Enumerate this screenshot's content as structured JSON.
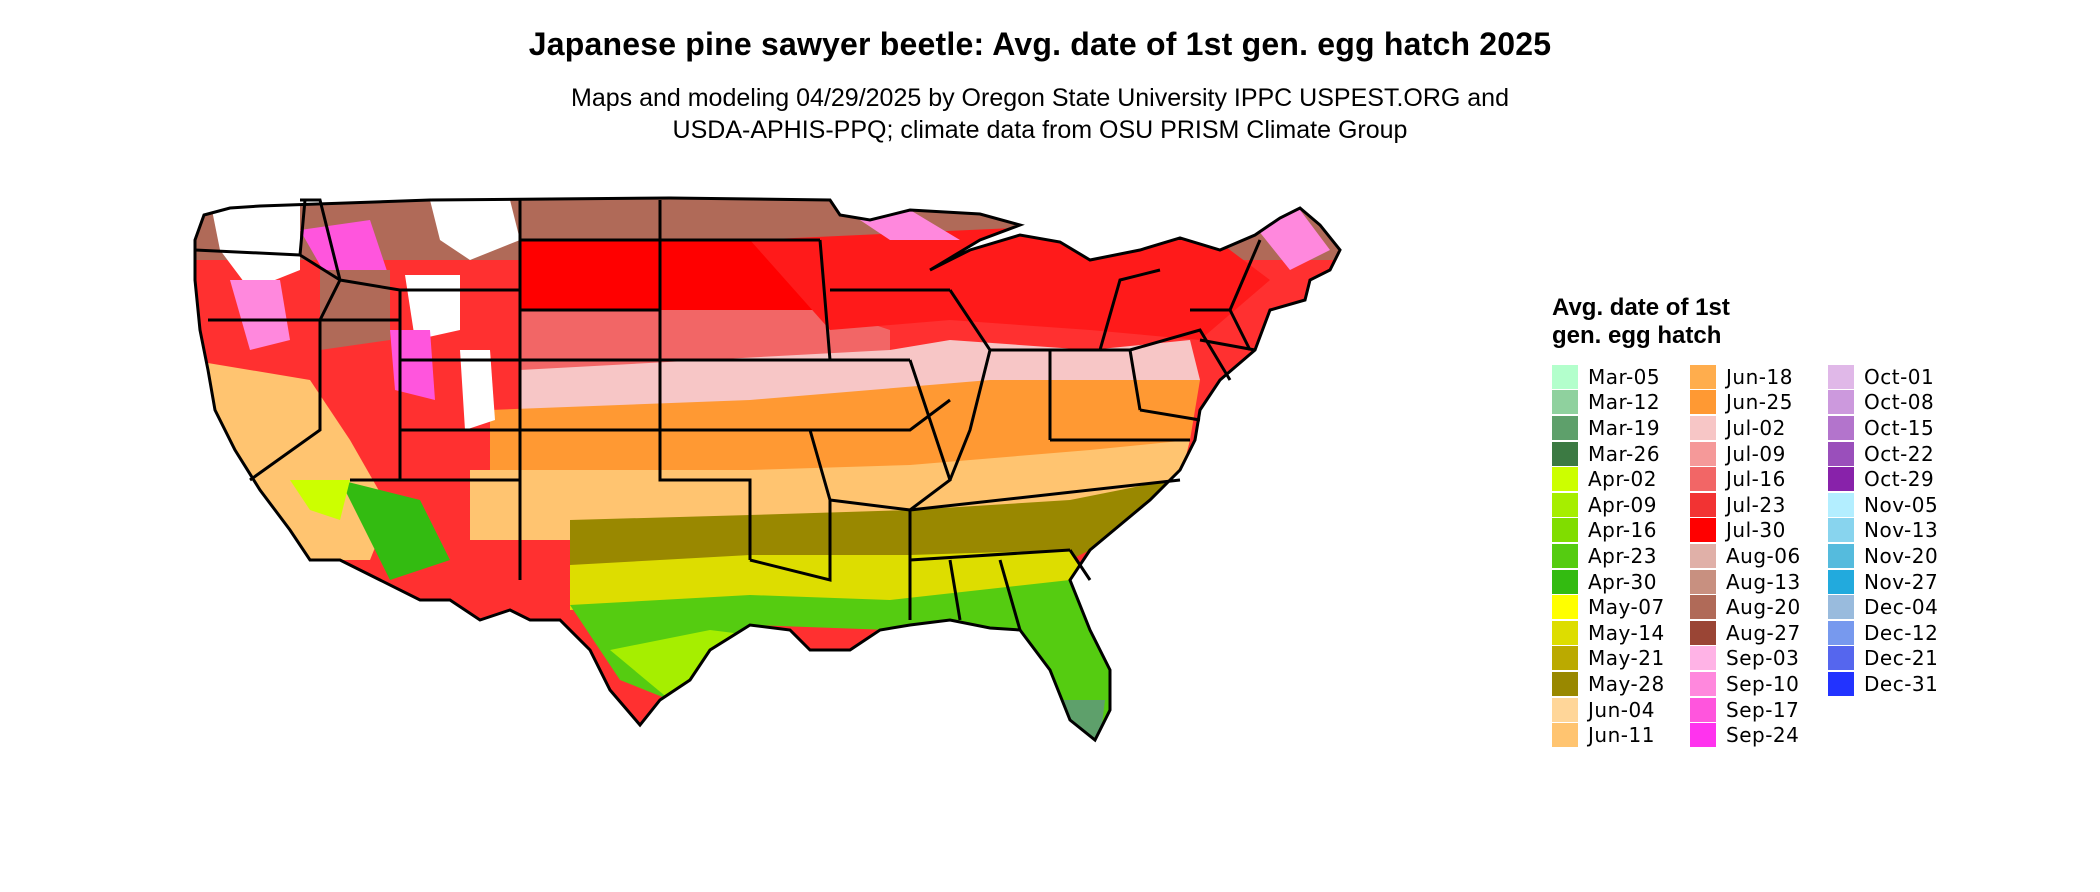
{
  "title": "Japanese pine sawyer beetle: Avg. date of 1st gen. egg hatch 2025",
  "subtitle_line1": "Maps and modeling 04/29/2025 by Oregon State University IPPC USPEST.ORG and",
  "subtitle_line2": "USDA-APHIS-PPQ; climate data from OSU PRISM Climate Group",
  "legend": {
    "title": "Avg. date of 1st gen. egg hatch",
    "columns": [
      [
        {
          "label": "Mar-05",
          "color": "#b3ffcc"
        },
        {
          "label": "Mar-12",
          "color": "#8fd19e"
        },
        {
          "label": "Mar-19",
          "color": "#5ea06b"
        },
        {
          "label": "Mar-26",
          "color": "#3c7a43"
        },
        {
          "label": "Apr-02",
          "color": "#ccff00"
        },
        {
          "label": "Apr-09",
          "color": "#a6ee00"
        },
        {
          "label": "Apr-16",
          "color": "#80dd00"
        },
        {
          "label": "Apr-23",
          "color": "#55cc11"
        },
        {
          "label": "Apr-30",
          "color": "#33bb11"
        },
        {
          "label": "May-07",
          "color": "#ffff00"
        },
        {
          "label": "May-14",
          "color": "#dddd00"
        },
        {
          "label": "May-21",
          "color": "#bbaa00"
        },
        {
          "label": "May-28",
          "color": "#998800"
        },
        {
          "label": "Jun-04",
          "color": "#ffd699"
        },
        {
          "label": "Jun-11",
          "color": "#ffc470"
        }
      ],
      [
        {
          "label": "Jun-18",
          "color": "#ffad4d"
        },
        {
          "label": "Jun-25",
          "color": "#ff9933"
        },
        {
          "label": "Jul-02",
          "color": "#f7c6c6"
        },
        {
          "label": "Jul-09",
          "color": "#f59999"
        },
        {
          "label": "Jul-16",
          "color": "#f26666"
        },
        {
          "label": "Jul-23",
          "color": "#f23333"
        },
        {
          "label": "Jul-30",
          "color": "#ff0000"
        },
        {
          "label": "Aug-06",
          "color": "#e0b0a8"
        },
        {
          "label": "Aug-13",
          "color": "#c89080"
        },
        {
          "label": "Aug-20",
          "color": "#b06a58"
        },
        {
          "label": "Aug-27",
          "color": "#9a4535"
        },
        {
          "label": "Sep-03",
          "color": "#ffb3e6"
        },
        {
          "label": "Sep-10",
          "color": "#ff88dd"
        },
        {
          "label": "Sep-17",
          "color": "#ff55dd"
        },
        {
          "label": "Sep-24",
          "color": "#ff33ee"
        }
      ],
      [
        {
          "label": "Oct-01",
          "color": "#e0b8e8"
        },
        {
          "label": "Oct-08",
          "color": "#cc99dd"
        },
        {
          "label": "Oct-15",
          "color": "#b374cc"
        },
        {
          "label": "Oct-22",
          "color": "#9a4fbb"
        },
        {
          "label": "Oct-29",
          "color": "#8822aa"
        },
        {
          "label": "Nov-05",
          "color": "#b3eeff"
        },
        {
          "label": "Nov-13",
          "color": "#88d4ee"
        },
        {
          "label": "Nov-20",
          "color": "#55bbdd"
        },
        {
          "label": "Nov-27",
          "color": "#22aadd"
        },
        {
          "label": "Dec-04",
          "color": "#99bbdd"
        },
        {
          "label": "Dec-12",
          "color": "#7799ee"
        },
        {
          "label": "Dec-21",
          "color": "#5566ee"
        },
        {
          "label": "Dec-31",
          "color": "#2233ff"
        }
      ]
    ]
  }
}
